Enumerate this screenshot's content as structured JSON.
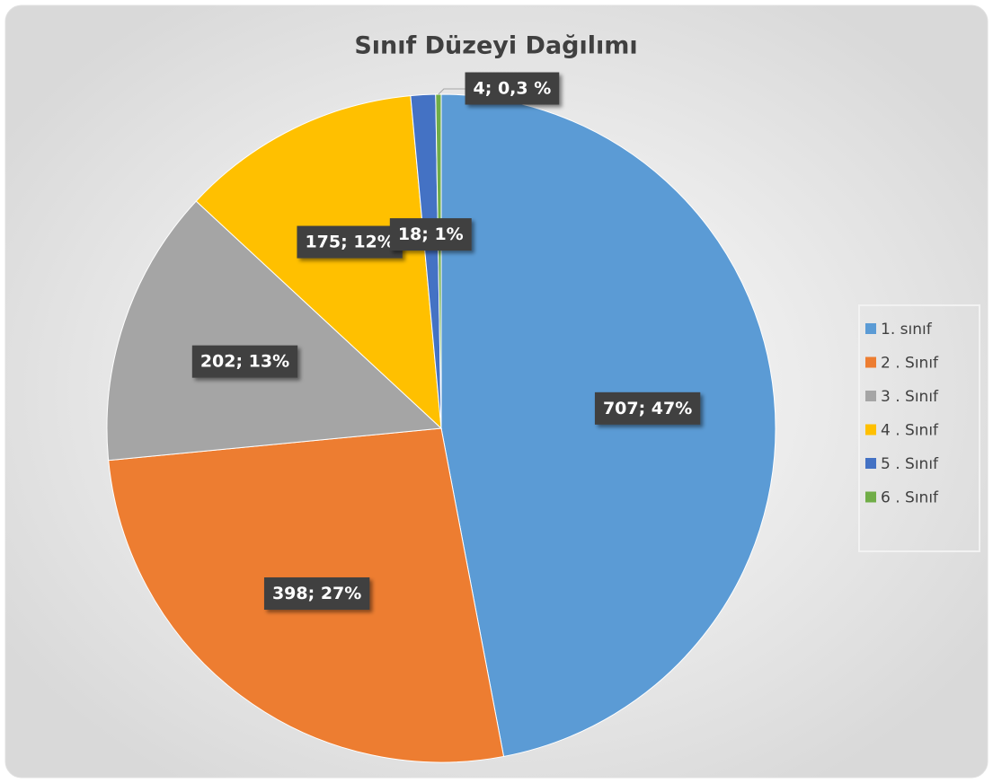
{
  "chart_data": {
    "type": "pie",
    "title": "Sınıf Düzeyi Dağılımı",
    "categories": [
      "1. sınıf",
      "2 . Sınıf",
      "3 . Sınıf",
      "4 . Sınıf",
      "5 . Sınıf",
      "6 . Sınıf"
    ],
    "values": [
      707,
      398,
      202,
      175,
      18,
      4
    ],
    "value_labels": [
      "707; 47%",
      "398; 27%",
      "202; 13%",
      "175; 12%",
      "18; 1%",
      "4; 0,3 %"
    ],
    "colors": [
      "#5b9bd5",
      "#ed7d31",
      "#a5a5a5",
      "#ffc000",
      "#4472c4",
      "#70ad47"
    ],
    "legend": "right"
  }
}
